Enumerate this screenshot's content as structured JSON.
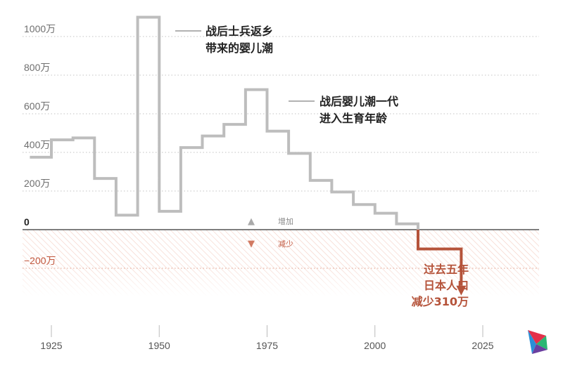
{
  "colors": {
    "positive_line": "#bdbdbd",
    "negative_line": "#b5533a",
    "zero_line": "#555555",
    "neg_hatch": "#f2c9bd"
  },
  "chart_data": {
    "type": "line",
    "step": true,
    "unit": "万",
    "x_ticks": [
      "1925",
      "1950",
      "1975",
      "2000",
      "2025"
    ],
    "y_ticks": [
      {
        "value": 1000,
        "label": "1000万"
      },
      {
        "value": 800,
        "label": "800万"
      },
      {
        "value": 600,
        "label": "600万"
      },
      {
        "value": 400,
        "label": "400万"
      },
      {
        "value": 200,
        "label": "200万"
      },
      {
        "value": 0,
        "label": "0"
      },
      {
        "value": -200,
        "label": "−200万"
      }
    ],
    "ylim": [
      -350,
      1150
    ],
    "xlim": [
      1920,
      2035
    ],
    "grid": true,
    "series": [
      {
        "x_start": [
          1920,
          1925,
          1930,
          1935,
          1940,
          1945,
          1950,
          1955,
          1960,
          1965,
          1970,
          1975,
          1980,
          1985,
          1990,
          1995,
          2000,
          2005,
          2010,
          2015
        ],
        "x_end": [
          1925,
          1930,
          1935,
          1940,
          1945,
          1950,
          1955,
          1960,
          1965,
          1970,
          1975,
          1980,
          1985,
          1990,
          1995,
          2000,
          2005,
          2010,
          2015,
          2020
        ],
        "values": [
          375,
          465,
          475,
          265,
          75,
          1100,
          95,
          425,
          485,
          545,
          725,
          510,
          395,
          255,
          195,
          130,
          85,
          30,
          -100,
          -100
        ]
      }
    ],
    "annotations": [
      {
        "lines": [
          "战后士兵返乡",
          "带来的婴儿潮"
        ],
        "x": 1950
      },
      {
        "lines": [
          "战后婴儿潮一代",
          "进入生育年龄"
        ],
        "x": 1976
      },
      {
        "lines": [
          "过去五年",
          "日本人口",
          "减少310万"
        ],
        "x": 2020
      }
    ],
    "legend": [
      {
        "symbol": "▲",
        "label": "增加"
      },
      {
        "symbol": "▼",
        "label": "减少"
      }
    ]
  }
}
